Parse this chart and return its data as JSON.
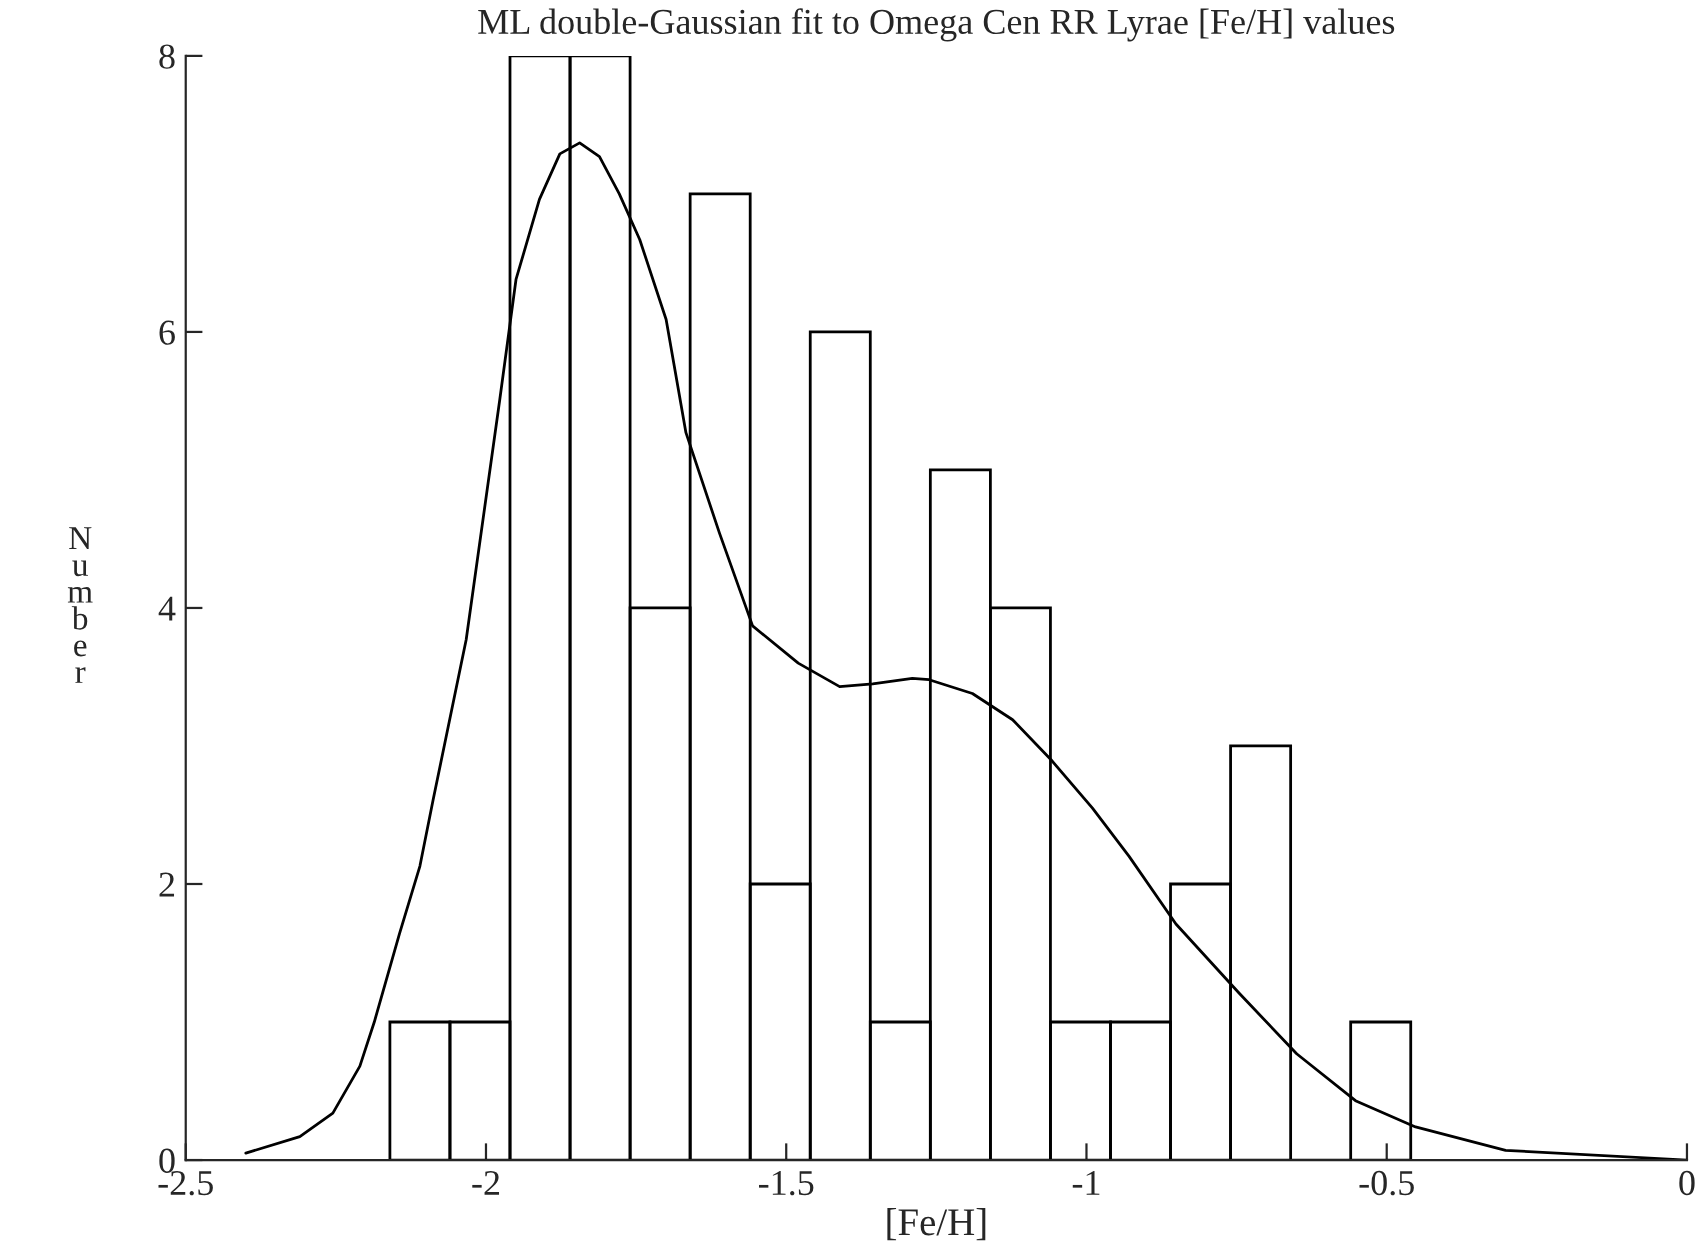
{
  "chart_data": {
    "type": "histogram",
    "title": "ML double-Gaussian fit to Omega Cen RR Lyrae [Fe/H] values",
    "xlabel": "[Fe/H]",
    "ylabel": "Number",
    "bins": [
      -2.16,
      -2.06,
      -1.96,
      -1.86,
      -1.76,
      -1.66,
      -1.56,
      -1.46,
      -1.36,
      -1.26,
      -1.16,
      -1.06,
      -0.96,
      -0.86,
      -0.76,
      -0.66,
      -0.56,
      -0.46
    ],
    "values": [
      1,
      1,
      8,
      8,
      4,
      7,
      2,
      6,
      1,
      5,
      4,
      1,
      1,
      2,
      3,
      0,
      1
    ],
    "color": "#000000",
    "series": [
      {
        "type": "line",
        "color": "#000000",
        "x": [
          -2.4,
          -2.31,
          -2.255,
          -2.21,
          -2.186,
          -2.144,
          -2.11,
          -2.088,
          -2.033,
          -1.977,
          -1.95,
          -1.911,
          -1.877,
          -1.844,
          -1.811,
          -1.778,
          -1.744,
          -1.7,
          -1.667,
          -1.611,
          -1.556,
          -1.48,
          -1.411,
          -1.356,
          -1.29,
          -1.262,
          -1.19,
          -1.123,
          -1.059,
          -0.99,
          -0.929,
          -0.851,
          -0.746,
          -0.65,
          -0.552,
          -0.452,
          -0.302,
          0.0
        ],
        "values": [
          0.05,
          0.17,
          0.34,
          0.68,
          1.0,
          1.64,
          2.13,
          2.61,
          3.77,
          5.51,
          6.38,
          6.96,
          7.29,
          7.37,
          7.27,
          7.0,
          6.67,
          6.09,
          5.27,
          4.54,
          3.87,
          3.6,
          3.43,
          3.45,
          3.49,
          3.48,
          3.38,
          3.19,
          2.9,
          2.55,
          2.2,
          1.71,
          1.21,
          0.77,
          0.43,
          0.24,
          0.07,
          0.0
        ]
      }
    ],
    "xlim": [
      -2.5,
      0
    ],
    "xticks": [
      -2.5,
      -2,
      -1.5,
      -1,
      -0.5,
      0
    ],
    "ylim": [
      0,
      8
    ],
    "yticks": [
      0,
      2,
      4,
      6,
      8
    ],
    "grid": false
  }
}
